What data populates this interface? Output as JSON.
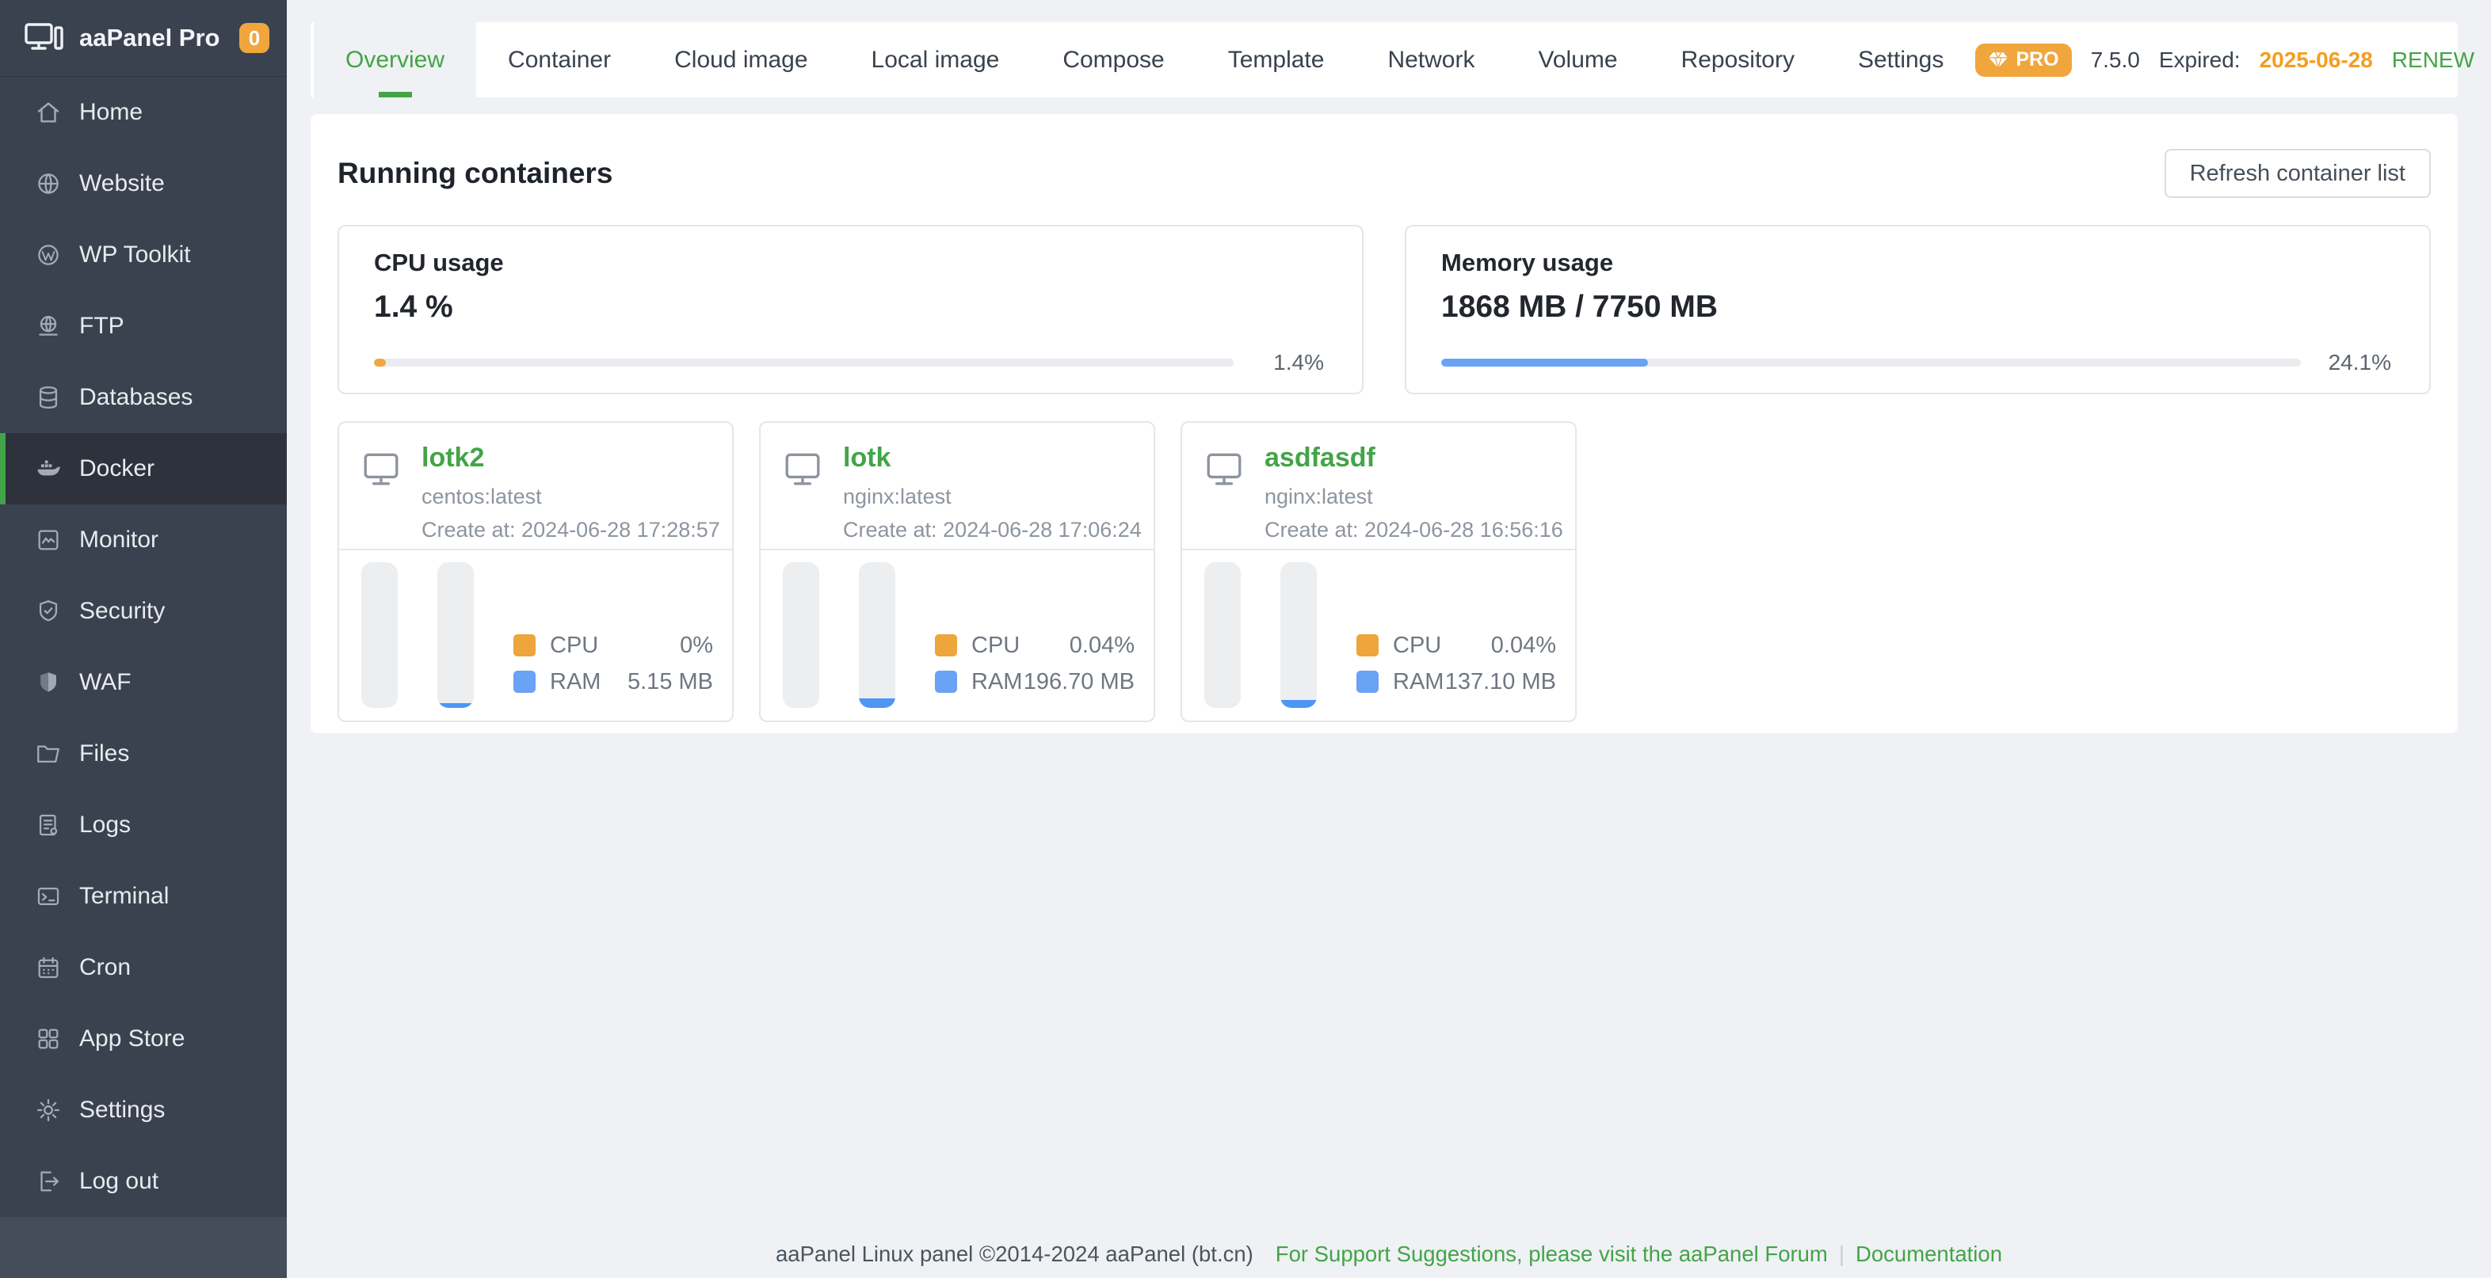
{
  "app": {
    "name": "aaPanel Pro",
    "badge": "0"
  },
  "sidebar": {
    "items": [
      {
        "label": "Home",
        "icon": "home-icon"
      },
      {
        "label": "Website",
        "icon": "globe-icon"
      },
      {
        "label": "WP Toolkit",
        "icon": "wordpress-icon"
      },
      {
        "label": "FTP",
        "icon": "ftp-globe-icon"
      },
      {
        "label": "Databases",
        "icon": "database-icon"
      },
      {
        "label": "Docker",
        "icon": "docker-whale-icon",
        "active": true
      },
      {
        "label": "Monitor",
        "icon": "monitor-chart-icon"
      },
      {
        "label": "Security",
        "icon": "shield-check-icon"
      },
      {
        "label": "WAF",
        "icon": "shield-filled-icon"
      },
      {
        "label": "Files",
        "icon": "folder-icon"
      },
      {
        "label": "Logs",
        "icon": "log-document-icon"
      },
      {
        "label": "Terminal",
        "icon": "terminal-icon"
      },
      {
        "label": "Cron",
        "icon": "calendar-icon"
      },
      {
        "label": "App Store",
        "icon": "grid-icon"
      },
      {
        "label": "Settings",
        "icon": "gear-icon"
      },
      {
        "label": "Log out",
        "icon": "logout-icon"
      }
    ]
  },
  "tabs": {
    "items": [
      "Overview",
      "Container",
      "Cloud image",
      "Local image",
      "Compose",
      "Template",
      "Network",
      "Volume",
      "Repository",
      "Settings"
    ],
    "active": "Overview",
    "pro_badge": "PRO",
    "version": "7.5.0",
    "expired_label": "Expired:",
    "expired_date": "2025-06-28",
    "renew_label": "RENEW"
  },
  "main": {
    "title": "Running containers",
    "refresh_button": "Refresh container list",
    "cpu_card": {
      "title": "CPU usage",
      "value": "1.4 %",
      "percent": 1.4,
      "percent_label": "1.4%"
    },
    "memory_card": {
      "title": "Memory usage",
      "value": "1868 MB / 7750 MB",
      "percent": 24.1,
      "percent_label": "24.1%"
    },
    "containers": [
      {
        "name": "lotk2",
        "image": "centos:latest",
        "created": "Create at: 2024-06-28 17:28:57",
        "cpu_label": "CPU",
        "cpu_value": "0%",
        "ram_label": "RAM",
        "ram_value": "5.15 MB",
        "cpu_bar_pct": 0,
        "ram_bar_pct": 3
      },
      {
        "name": "lotk",
        "image": "nginx:latest",
        "created": "Create at: 2024-06-28 17:06:24",
        "cpu_label": "CPU",
        "cpu_value": "0.04%",
        "ram_label": "RAM",
        "ram_value": "196.70 MB",
        "cpu_bar_pct": 0,
        "ram_bar_pct": 6.5
      },
      {
        "name": "asdfasdf",
        "image": "nginx:latest",
        "created": "Create at: 2024-06-28 16:56:16",
        "cpu_label": "CPU",
        "cpu_value": "0.04%",
        "ram_label": "RAM",
        "ram_value": "137.10 MB",
        "cpu_bar_pct": 0,
        "ram_bar_pct": 5.5
      }
    ]
  },
  "footer": {
    "copyright": "aaPanel Linux panel ©2014-2024 aaPanel (bt.cn)",
    "support_link": "For Support Suggestions, please visit the aaPanel Forum",
    "separator": "|",
    "docs_link": "Documentation"
  },
  "colors": {
    "accent_green": "#43A447",
    "accent_orange": "#F0A63C",
    "expired_orange": "#F59D21",
    "memory_blue": "#6AA2F5",
    "sidebar_bg": "#3A4250"
  }
}
